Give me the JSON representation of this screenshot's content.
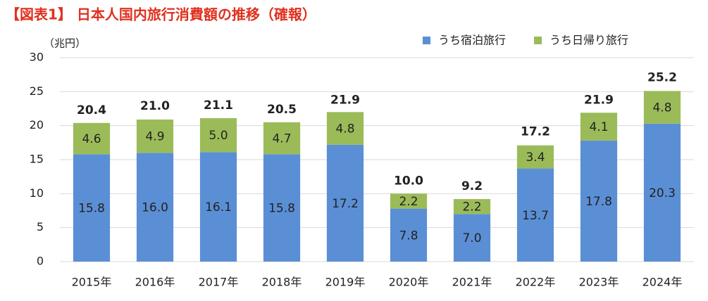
{
  "chart_data": {
    "type": "stacked-bar",
    "title": "【図表1】 日本人国内旅行消費額の推移（確報）",
    "y_label": "（兆円）",
    "categories": [
      "2015年",
      "2016年",
      "2017年",
      "2018年",
      "2019年",
      "2020年",
      "2021年",
      "2022年",
      "2023年",
      "2024年"
    ],
    "series": [
      {
        "name": "うち宿泊旅行",
        "color": "#5b8fd5",
        "values": [
          15.8,
          16,
          16.1,
          15.8,
          17.2,
          7.8,
          7,
          13.7,
          17.8,
          20.3
        ],
        "value_labels": [
          "15.8",
          "16.0",
          "16.1",
          "15.8",
          "17.2",
          "7.8",
          "7.0",
          "13.7",
          "17.8",
          "20.3"
        ]
      },
      {
        "name": "うち日帰り旅行",
        "color": "#9bbb59",
        "values": [
          4.6,
          4.9,
          5,
          4.7,
          4.8,
          2.2,
          2.2,
          3.4,
          4.1,
          4.8
        ],
        "value_labels": [
          "4.6",
          "4.9",
          "5.0",
          "4.7",
          "4.8",
          "2.2",
          "2.2",
          "3.4",
          "4.1",
          "4.8"
        ]
      }
    ],
    "totals": [
      20.4,
      21,
      21.1,
      20.5,
      21.9,
      10,
      9.2,
      17.2,
      21.9,
      25.2
    ],
    "total_labels": [
      "20.4",
      "21.0",
      "21.1",
      "20.5",
      "21.9",
      "10.0",
      "9.2",
      "17.2",
      "21.9",
      "25.2"
    ],
    "ylim": [
      0,
      30
    ],
    "yticks": [
      0,
      5,
      10,
      15,
      20,
      25,
      30
    ],
    "grid": true,
    "legend": "top-right"
  }
}
